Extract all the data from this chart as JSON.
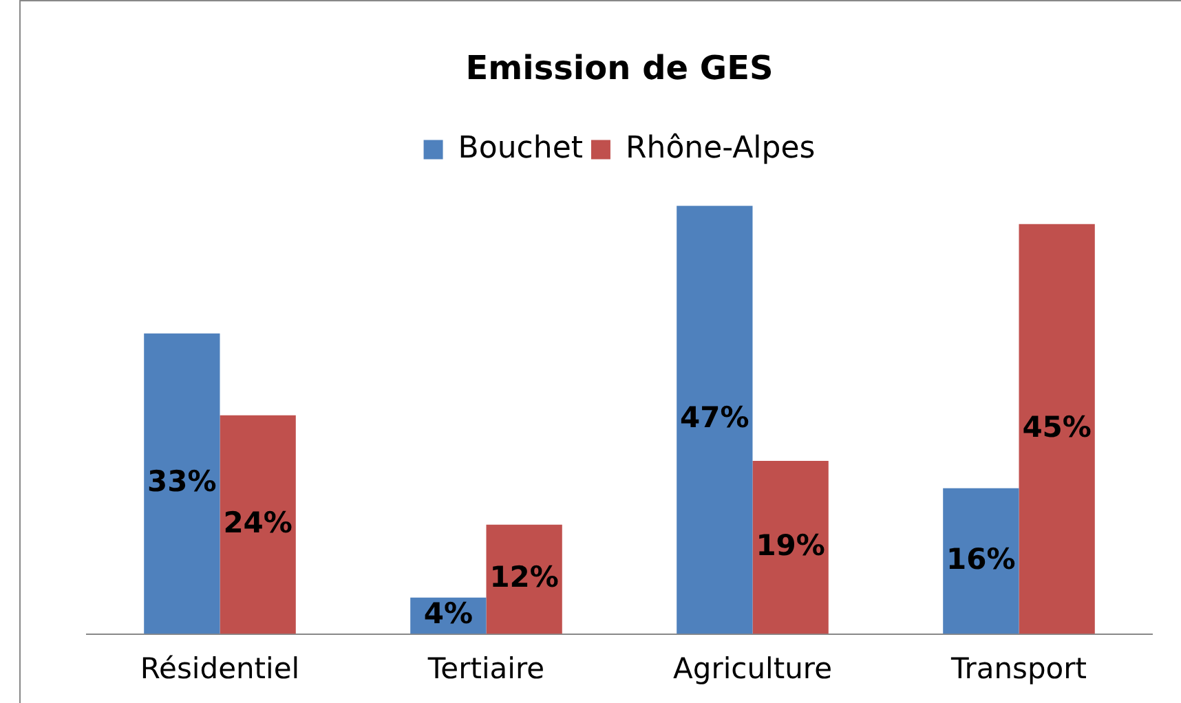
{
  "chart_data": {
    "type": "bar",
    "title": "Emission de GES",
    "categories": [
      "Résidentiel",
      "Tertiaire",
      "Agriculture",
      "Transport"
    ],
    "series": [
      {
        "name": "Bouchet",
        "color": "#4f81bd",
        "values": [
          33,
          4,
          47,
          16
        ],
        "value_labels": [
          "33%",
          "4%",
          "47%",
          "16%"
        ]
      },
      {
        "name": "Rhône-Alpes",
        "color": "#c0504d",
        "values": [
          24,
          12,
          19,
          45
        ],
        "value_labels": [
          "24%",
          "12%",
          "19%",
          "45%"
        ]
      }
    ],
    "legend": "top",
    "grid": false,
    "tick_labels": "x"
  }
}
